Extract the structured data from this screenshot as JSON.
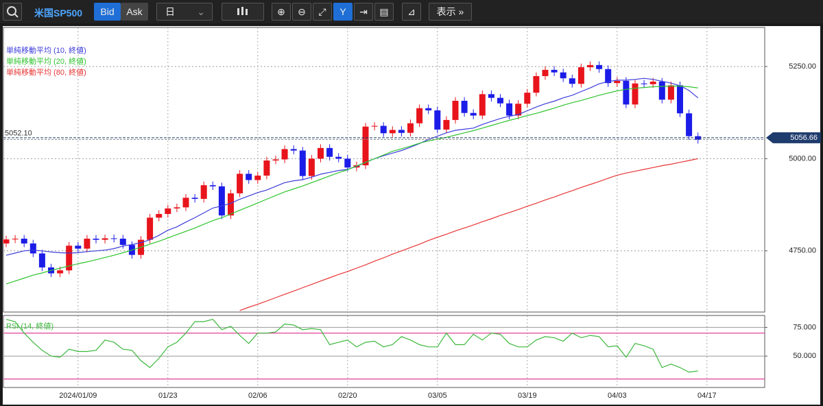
{
  "toolbar": {
    "symbol": "米国SP500",
    "bid": "Bid",
    "ask": "Ask",
    "period": "日",
    "display": "表示"
  },
  "chart_data": [
    {
      "type": "candlestick",
      "categories": [
        null,
        null,
        null,
        null,
        null,
        null,
        null,
        null,
        "2024/01/09",
        null,
        null,
        null,
        null,
        null,
        null,
        null,
        null,
        null,
        "01/23",
        null,
        null,
        null,
        null,
        null,
        null,
        null,
        null,
        null,
        "02/06",
        null,
        null,
        null,
        null,
        null,
        null,
        null,
        null,
        null,
        "02/20",
        null,
        null,
        null,
        null,
        null,
        null,
        null,
        null,
        null,
        "03/05",
        null,
        null,
        null,
        null,
        null,
        null,
        null,
        null,
        null,
        "03/19",
        null,
        null,
        null,
        null,
        null,
        null,
        null,
        null,
        null,
        "04/03",
        null,
        null,
        null,
        null,
        null,
        null,
        null,
        null,
        null,
        "04/17"
      ],
      "open": [
        4770,
        4781,
        4783,
        4770,
        4743,
        4705,
        4689,
        4697,
        4764,
        4756,
        4783,
        4780,
        4784,
        4783,
        4766,
        4739,
        4780,
        4840,
        4850,
        4865,
        4868,
        4894,
        4891,
        4928,
        4925,
        4846,
        4906,
        4959,
        4942,
        4954,
        4995,
        4998,
        5026,
        5022,
        4953,
        5000,
        5029,
        5005,
        5000,
        4976,
        4982,
        5087,
        5089,
        5069,
        5078,
        5070,
        5096,
        5137,
        5131,
        5079,
        5105,
        5157,
        5124,
        5117,
        5175,
        5165,
        5150,
        5117,
        5149,
        5179,
        5224,
        5241,
        5234,
        5218,
        5203,
        5248,
        5254,
        5243,
        5205,
        5211,
        5147,
        5204,
        5202,
        5209,
        5160,
        5199,
        5123,
        5061,
        null
      ],
      "high": [
        4791,
        4793,
        4793,
        4780,
        4753,
        4715,
        4707,
        4774,
        4774,
        4793,
        4793,
        4794,
        4794,
        4793,
        4776,
        4790,
        4850,
        4860,
        4875,
        4878,
        4904,
        4904,
        4938,
        4938,
        4935,
        4916,
        4969,
        4969,
        4964,
        5005,
        5008,
        5036,
        5036,
        5032,
        5010,
        5039,
        5039,
        5015,
        5010,
        4992,
        5097,
        5099,
        5099,
        5088,
        5088,
        5106,
        5147,
        5147,
        5141,
        5115,
        5167,
        5167,
        5134,
        5185,
        5185,
        5175,
        5160,
        5159,
        5189,
        5234,
        5251,
        5251,
        5244,
        5228,
        5258,
        5264,
        5264,
        5253,
        5221,
        5221,
        5214,
        5214,
        5219,
        5219,
        5209,
        5209,
        5133,
        5071,
        null
      ],
      "low": [
        4760,
        4771,
        4760,
        4733,
        4695,
        4679,
        4679,
        4687,
        4746,
        4746,
        4770,
        4770,
        4773,
        4756,
        4729,
        4729,
        4770,
        4830,
        4840,
        4855,
        4858,
        4881,
        4881,
        4915,
        4836,
        4836,
        4896,
        4932,
        4932,
        4944,
        4985,
        4988,
        5012,
        4943,
        4943,
        4990,
        4995,
        4990,
        4966,
        4966,
        4972,
        5077,
        5059,
        5059,
        5060,
        5060,
        5086,
        5121,
        5069,
        5069,
        5095,
        5114,
        5107,
        5107,
        5155,
        5140,
        5107,
        5107,
        5139,
        5169,
        5214,
        5224,
        5208,
        5193,
        5193,
        5238,
        5233,
        5195,
        5195,
        5137,
        5137,
        5192,
        5192,
        5150,
        5150,
        5113,
        5051,
        5041,
        null
      ],
      "close": [
        4781,
        4783,
        4770,
        4743,
        4705,
        4689,
        4697,
        4764,
        4756,
        4783,
        4780,
        4784,
        4783,
        4766,
        4739,
        4780,
        4840,
        4850,
        4865,
        4868,
        4894,
        4891,
        4928,
        4925,
        4846,
        4906,
        4959,
        4942,
        4954,
        4995,
        4998,
        5026,
        5022,
        4953,
        5000,
        5029,
        5005,
        5000,
        4976,
        4982,
        5087,
        5089,
        5069,
        5078,
        5070,
        5096,
        5137,
        5131,
        5079,
        5105,
        5157,
        5124,
        5117,
        5175,
        5165,
        5150,
        5117,
        5149,
        5179,
        5224,
        5241,
        5234,
        5218,
        5203,
        5248,
        5254,
        5243,
        5205,
        5211,
        5147,
        5204,
        5202,
        5209,
        5160,
        5199,
        5123,
        5061,
        5051,
        null
      ],
      "up_color": "#e8141c",
      "down_color": "#1c1ce8",
      "series": [
        {
          "name": "単純移動平均 (10, 終値)",
          "color": "#3c3cdc",
          "values": [
            4738,
            4744,
            4750,
            4752,
            4750,
            4747,
            4745,
            4744,
            4745,
            4748,
            4750,
            4752,
            4756,
            4763,
            4767,
            4772,
            4780,
            4792,
            4806,
            4815,
            4828,
            4840,
            4853,
            4866,
            4872,
            4879,
            4890,
            4899,
            4908,
            4915,
            4925,
            4935,
            4940,
            4943,
            4950,
            4958,
            4963,
            4968,
            4971,
            4979,
            4990,
            5000,
            5008,
            5015,
            5022,
            5031,
            5041,
            5052,
            5061,
            5070,
            5077,
            5080,
            5083,
            5093,
            5101,
            5109,
            5115,
            5120,
            5130,
            5140,
            5149,
            5156,
            5165,
            5172,
            5182,
            5192,
            5203,
            5209,
            5213,
            5213,
            5215,
            5218,
            5215,
            5210,
            5205,
            5198,
            5185,
            5165,
            null
          ]
        },
        {
          "name": "単純移動平均 (20, 終値)",
          "color": "#2ec42e",
          "values": [
            4660,
            4668,
            4676,
            4684,
            4690,
            4697,
            4703,
            4709,
            4715,
            4720,
            4726,
            4732,
            4738,
            4745,
            4752,
            4760,
            4768,
            4776,
            4785,
            4794,
            4803,
            4812,
            4822,
            4832,
            4840,
            4850,
            4860,
            4870,
            4880,
            4890,
            4900,
            4910,
            4918,
            4926,
            4935,
            4944,
            4953,
            4962,
            4970,
            4980,
            4990,
            5000,
            5010,
            5020,
            5027,
            5034,
            5042,
            5048,
            5053,
            5058,
            5064,
            5070,
            5076,
            5083,
            5090,
            5097,
            5104,
            5110,
            5117,
            5123,
            5130,
            5137,
            5145,
            5152,
            5158,
            5165,
            5172,
            5178,
            5184,
            5188,
            5191,
            5193,
            5195,
            5196,
            5197,
            5197,
            5195,
            5192,
            null
          ]
        },
        {
          "name": "単純移動平均 (80, 終値)",
          "color": "#e83434",
          "values": [
            null,
            null,
            null,
            null,
            null,
            null,
            null,
            null,
            null,
            null,
            null,
            null,
            null,
            null,
            null,
            null,
            null,
            null,
            null,
            null,
            null,
            null,
            null,
            null,
            null,
            null,
            4588,
            4597,
            4605,
            4614,
            4623,
            4632,
            4641,
            4650,
            4659,
            4668,
            4677,
            4686,
            4694,
            4703,
            4712,
            4722,
            4731,
            4741,
            4750,
            4759,
            4768,
            4778,
            4787,
            4795,
            4804,
            4812,
            4820,
            4829,
            4837,
            4846,
            4854,
            4862,
            4871,
            4879,
            4888,
            4896,
            4905,
            4913,
            4922,
            4930,
            4938,
            4947,
            4955,
            4961,
            4966,
            4971,
            4976,
            4981,
            4985,
            4990,
            4995,
            5000,
            null
          ]
        }
      ],
      "ylim": [
        4584,
        5356
      ],
      "yticks": [
        {
          "value": 4750,
          "label": "4750.00"
        },
        {
          "value": 5000,
          "label": "5000.00"
        },
        {
          "value": 5250,
          "label": "5250.00"
        }
      ],
      "grid": true,
      "reference_line": {
        "value": 5052.1,
        "label": "5052.10"
      },
      "last_price": {
        "value": 5056.66,
        "label": "5056.66"
      }
    },
    {
      "type": "line",
      "series": [
        {
          "name": "RSI (14, 終値)",
          "color": "#3cb83c",
          "values": [
            82,
            80,
            70,
            62,
            55,
            50,
            49,
            56,
            54,
            54,
            55,
            64,
            62,
            56,
            55,
            46,
            40,
            48,
            58,
            62,
            70,
            80,
            80,
            82,
            73,
            76,
            68,
            61,
            70,
            70,
            71,
            78,
            77,
            73,
            74,
            73,
            60,
            62,
            64,
            58,
            62,
            63,
            58,
            60,
            67,
            64,
            60,
            58,
            58,
            70,
            60,
            60,
            69,
            64,
            70,
            69,
            61,
            58,
            58,
            64,
            67,
            66,
            63,
            70,
            66,
            68,
            67,
            58,
            59,
            49,
            61,
            59,
            56,
            40,
            43,
            40,
            36,
            37,
            null
          ]
        }
      ],
      "ylim": [
        22.6,
        85.4
      ],
      "yticks": [
        {
          "value": 50,
          "label": "50.000"
        },
        {
          "value": 75,
          "label": "75.000"
        }
      ],
      "levels": [
        70,
        30
      ],
      "level_color": "#e0409a"
    }
  ]
}
